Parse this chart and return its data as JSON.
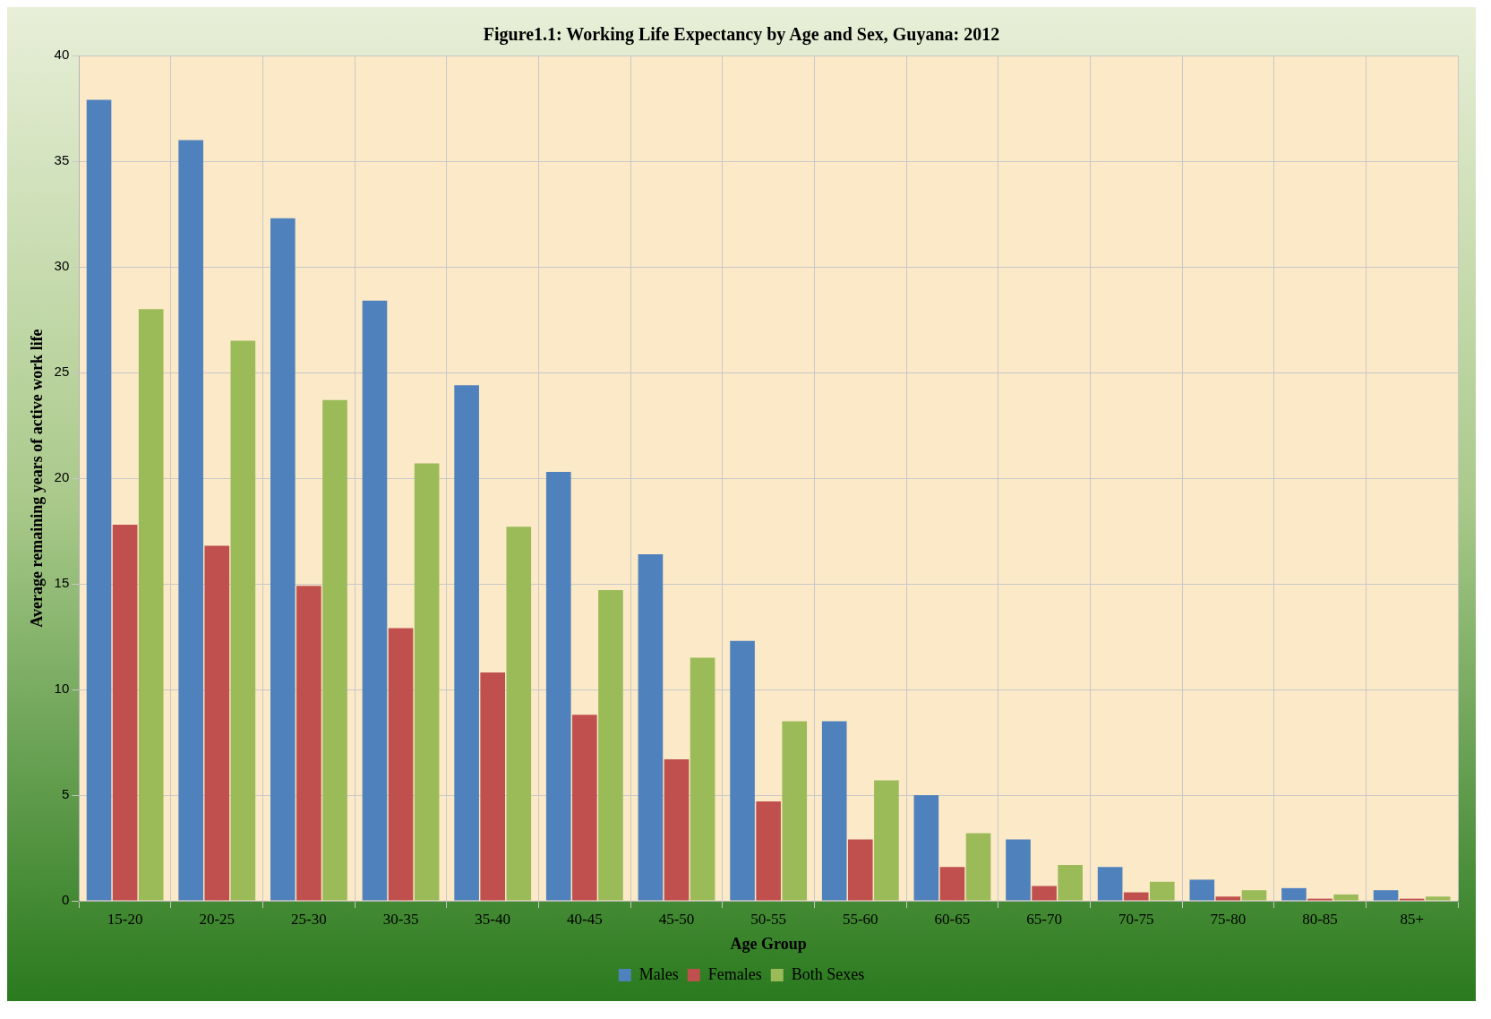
{
  "chart_data": {
    "type": "bar",
    "title": "Figure1.1: Working Life Expectancy by Age and Sex, Guyana: 2012",
    "xlabel": "Age Group",
    "ylabel": "Average remaining years of active work life",
    "categories": [
      "15-20",
      "20-25",
      "25-30",
      "30-35",
      "35-40",
      "40-45",
      "45-50",
      "50-55",
      "55-60",
      "60-65",
      "65-70",
      "70-75",
      "75-80",
      "80-85",
      "85+"
    ],
    "series": [
      {
        "name": "Males",
        "color": "#4f81bd",
        "values": [
          37.9,
          36,
          32.3,
          28.4,
          24.4,
          20.3,
          16.4,
          12.3,
          8.5,
          5,
          2.9,
          1.6,
          1,
          0.6,
          0.5
        ]
      },
      {
        "name": "Females",
        "color": "#c0504d",
        "values": [
          17.8,
          16.8,
          14.9,
          12.9,
          10.8,
          8.8,
          6.7,
          4.7,
          2.9,
          1.6,
          0.7,
          0.4,
          0.2,
          0.1,
          0.1
        ]
      },
      {
        "name": "Both Sexes",
        "color": "#9bbb59",
        "values": [
          28,
          26.5,
          23.7,
          20.7,
          17.7,
          14.7,
          11.5,
          8.5,
          5.7,
          3.2,
          1.7,
          0.9,
          0.5,
          0.3,
          0.2
        ]
      }
    ],
    "ylim": [
      0,
      40
    ],
    "yticks": [
      0,
      5,
      10,
      15,
      20,
      25,
      30,
      35,
      40
    ],
    "grid": true,
    "legend": "bottom"
  }
}
